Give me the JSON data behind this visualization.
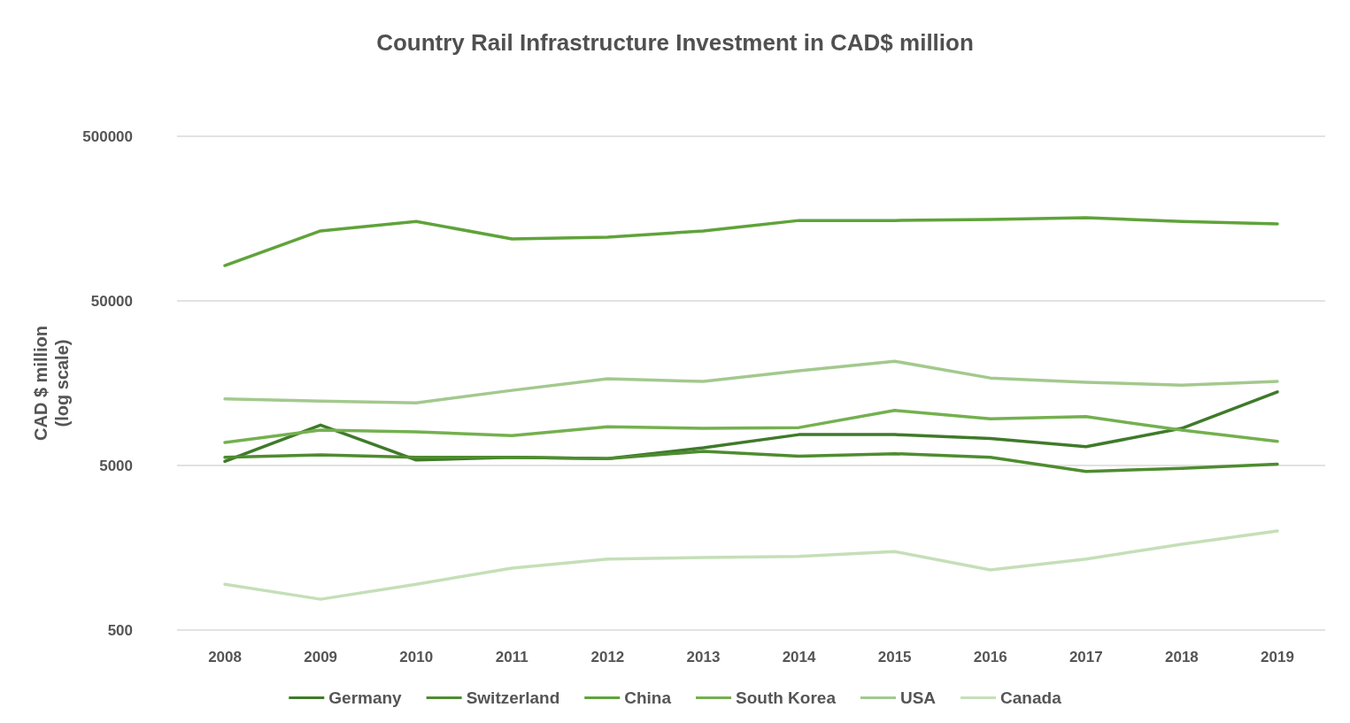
{
  "chart_data": {
    "type": "line",
    "title": "Country Rail Infrastructure Investment in CAD$ million",
    "ylabel": "CAD $ million\n(log scale)",
    "categories": [
      "2008",
      "2009",
      "2010",
      "2011",
      "2012",
      "2013",
      "2014",
      "2015",
      "2016",
      "2017",
      "2018",
      "2019"
    ],
    "series": [
      {
        "name": "Germany",
        "color": "#3f7a2a",
        "values": [
          5300,
          8800,
          5400,
          5600,
          5500,
          6400,
          7700,
          7700,
          7300,
          6500,
          8400,
          14000
        ]
      },
      {
        "name": "Switzerland",
        "color": "#4e8c30",
        "values": [
          5600,
          5800,
          5600,
          5600,
          5500,
          6100,
          5700,
          5900,
          5600,
          4600,
          4800,
          5100
        ]
      },
      {
        "name": "China",
        "color": "#5fa33a",
        "values": [
          82000,
          133000,
          152000,
          119000,
          122000,
          133000,
          154000,
          154000,
          156000,
          160000,
          152000,
          147000
        ]
      },
      {
        "name": "South Korea",
        "color": "#74b04f",
        "values": [
          6900,
          8200,
          8000,
          7600,
          8600,
          8400,
          8500,
          10800,
          9600,
          9900,
          8200,
          7000
        ]
      },
      {
        "name": "USA",
        "color": "#a3c98e",
        "values": [
          12700,
          12300,
          12000,
          14300,
          16800,
          16200,
          18800,
          21500,
          17000,
          16000,
          15400,
          16200
        ]
      },
      {
        "name": "Canada",
        "color": "#c5dfb8",
        "values": [
          950,
          770,
          950,
          1190,
          1350,
          1380,
          1400,
          1500,
          1160,
          1350,
          1660,
          2000
        ]
      }
    ],
    "log": "y",
    "ylim": [
      500,
      500000
    ],
    "yticks": [
      500,
      5000,
      50000,
      500000
    ],
    "grid": "y",
    "legend": "bottom",
    "marker": "none",
    "line_style": "solid"
  }
}
